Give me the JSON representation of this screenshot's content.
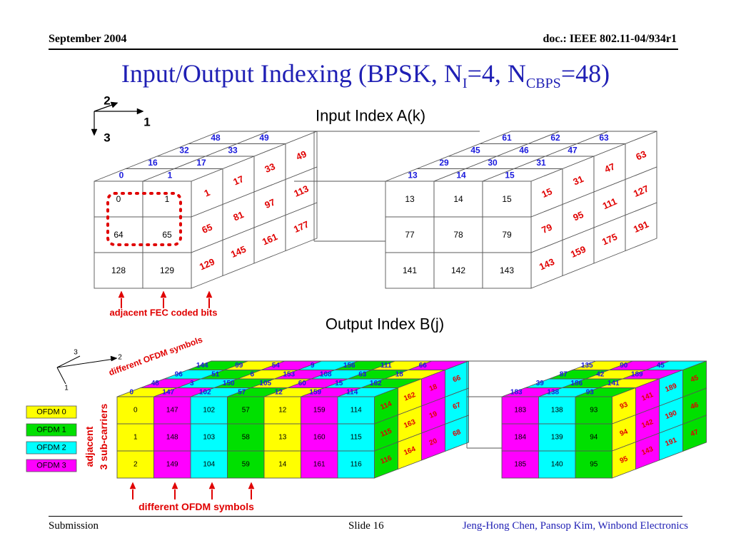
{
  "header": {
    "date": "September 2004",
    "doc": "doc.: IEEE 802.11-04/934r1"
  },
  "title": {
    "main": "Input/Output Indexing (BPSK, N",
    "sub1": "I",
    "mid": "=4, N",
    "sub2": "CBPS",
    "end": "=48)"
  },
  "footer": {
    "left": "Submission",
    "slide": "Slide 16",
    "authors": "Jeng-Hong Chen, Pansop Kim, Winbond Electronics"
  },
  "input": {
    "title": "Input Index A(k)",
    "axes": {
      "a1": "1",
      "a2": "2",
      "a3": "3"
    },
    "caption": "adjacent FEC coded bits",
    "left_front": [
      [
        "0",
        "1"
      ],
      [
        "64",
        "65"
      ],
      [
        "128",
        "129"
      ]
    ],
    "left_top": [
      [
        "0",
        "1"
      ],
      [
        "16",
        "17"
      ],
      [
        "32",
        "33"
      ],
      [
        "48",
        "49"
      ]
    ],
    "left_side": [
      [
        "1",
        "17",
        "33",
        "49"
      ],
      [
        "65",
        "81",
        "97",
        "113"
      ],
      [
        "129",
        "145",
        "161",
        "177"
      ]
    ],
    "right_front": [
      [
        "13",
        "14",
        "15"
      ],
      [
        "77",
        "78",
        "79"
      ],
      [
        "141",
        "142",
        "143"
      ]
    ],
    "right_top": [
      [
        "13",
        "14",
        "15"
      ],
      [
        "29",
        "30",
        "31"
      ],
      [
        "45",
        "46",
        "47"
      ],
      [
        "61",
        "62",
        "63"
      ]
    ],
    "right_side": [
      [
        "15",
        "31",
        "47",
        "63"
      ],
      [
        "79",
        "95",
        "111",
        "127"
      ],
      [
        "143",
        "159",
        "175",
        "191"
      ]
    ]
  },
  "output": {
    "title": "Output Index B(j)",
    "axes": {
      "a1": "1",
      "a2": "2",
      "a3": "3"
    },
    "diag_label": "different OFDM symbols",
    "vert_label_1": "adjacent",
    "vert_label_2": "3 sub-carriers",
    "caption": "different OFDM symbols",
    "legend": [
      {
        "label": "OFDM 0",
        "color": "#ffff00"
      },
      {
        "label": "OFDM 1",
        "color": "#00e000"
      },
      {
        "label": "OFDM 2",
        "color": "#00ffff"
      },
      {
        "label": "OFDM 3",
        "color": "#ff00ff"
      }
    ],
    "colors": [
      "#ffff00",
      "#ff00ff",
      "#00ffff",
      "#00e000"
    ],
    "left_front": [
      [
        "0",
        "147",
        "102",
        "57",
        "12",
        "159",
        "114"
      ],
      [
        "1",
        "148",
        "103",
        "58",
        "13",
        "160",
        "115"
      ],
      [
        "2",
        "149",
        "104",
        "59",
        "14",
        "161",
        "116"
      ]
    ],
    "left_top": [
      [
        "0",
        "147",
        "102",
        "57",
        "12",
        "159",
        "114"
      ],
      [
        "48",
        "3",
        "150",
        "105",
        "60",
        "15",
        "162"
      ],
      [
        "96",
        "51",
        "6",
        "153",
        "108",
        "63",
        "18"
      ],
      [
        "144",
        "99",
        "54",
        "9",
        "156",
        "111",
        "66"
      ]
    ],
    "left_side": [
      [
        "114",
        "162",
        "18",
        "66"
      ],
      [
        "115",
        "163",
        "19",
        "67"
      ],
      [
        "116",
        "164",
        "20",
        "68"
      ]
    ],
    "right_front": [
      [
        "183",
        "138",
        "93"
      ],
      [
        "184",
        "139",
        "94"
      ],
      [
        "185",
        "140",
        "95"
      ]
    ],
    "right_top": [
      [
        "183",
        "138",
        "93"
      ],
      [
        "39",
        "186",
        "141"
      ],
      [
        "87",
        "42",
        "189"
      ],
      [
        "135",
        "90",
        "45"
      ]
    ],
    "right_side": [
      [
        "93",
        "141",
        "189",
        "45"
      ],
      [
        "94",
        "142",
        "190",
        "46"
      ],
      [
        "95",
        "143",
        "191",
        "47"
      ]
    ]
  }
}
